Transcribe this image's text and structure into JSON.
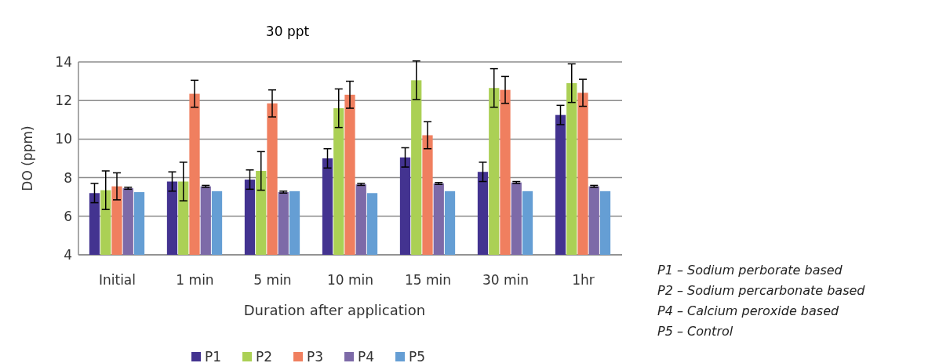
{
  "chart_data": {
    "type": "bar",
    "title": "30 ppt",
    "xlabel": "Duration after application",
    "ylabel": "DO (ppm)",
    "categories": [
      "Initial",
      "1 min",
      "5 min",
      "10 min",
      "15 min",
      "30 min",
      "1hr"
    ],
    "series": [
      {
        "name": "P1",
        "color": "#433390",
        "values": [
          7.2,
          7.8,
          7.9,
          9.0,
          9.05,
          8.3,
          11.25
        ],
        "errors": [
          0.5,
          0.5,
          0.5,
          0.5,
          0.5,
          0.5,
          0.5
        ]
      },
      {
        "name": "P2",
        "color": "#abd055",
        "values": [
          7.35,
          7.8,
          8.35,
          11.6,
          13.05,
          12.65,
          12.9
        ],
        "errors": [
          1.0,
          1.0,
          1.0,
          1.0,
          1.0,
          1.0,
          1.0
        ]
      },
      {
        "name": "P3",
        "color": "#f07f5f",
        "values": [
          7.55,
          12.35,
          11.85,
          12.3,
          10.2,
          12.55,
          12.4
        ],
        "errors": [
          0.7,
          0.7,
          0.7,
          0.7,
          0.7,
          0.7,
          0.7
        ]
      },
      {
        "name": "P4",
        "color": "#7d6aa8",
        "values": [
          7.45,
          7.55,
          7.25,
          7.65,
          7.7,
          7.75,
          7.55
        ],
        "errors": [
          0.05,
          0.05,
          0.05,
          0.05,
          0.05,
          0.05,
          0.05
        ]
      },
      {
        "name": "P5",
        "color": "#659ed4",
        "values": [
          7.25,
          7.3,
          7.3,
          7.2,
          7.3,
          7.3,
          7.3
        ]
      }
    ],
    "ylim": [
      4,
      14
    ],
    "yticks": [
      4,
      6,
      8,
      10,
      12,
      14
    ],
    "grid": "y",
    "legend": "bottom",
    "annotations": [
      "P1 – Sodium perborate based",
      "P2 – Sodium percarbonate based",
      "P4 – Calcium peroxide based",
      "P5 – Control"
    ]
  }
}
